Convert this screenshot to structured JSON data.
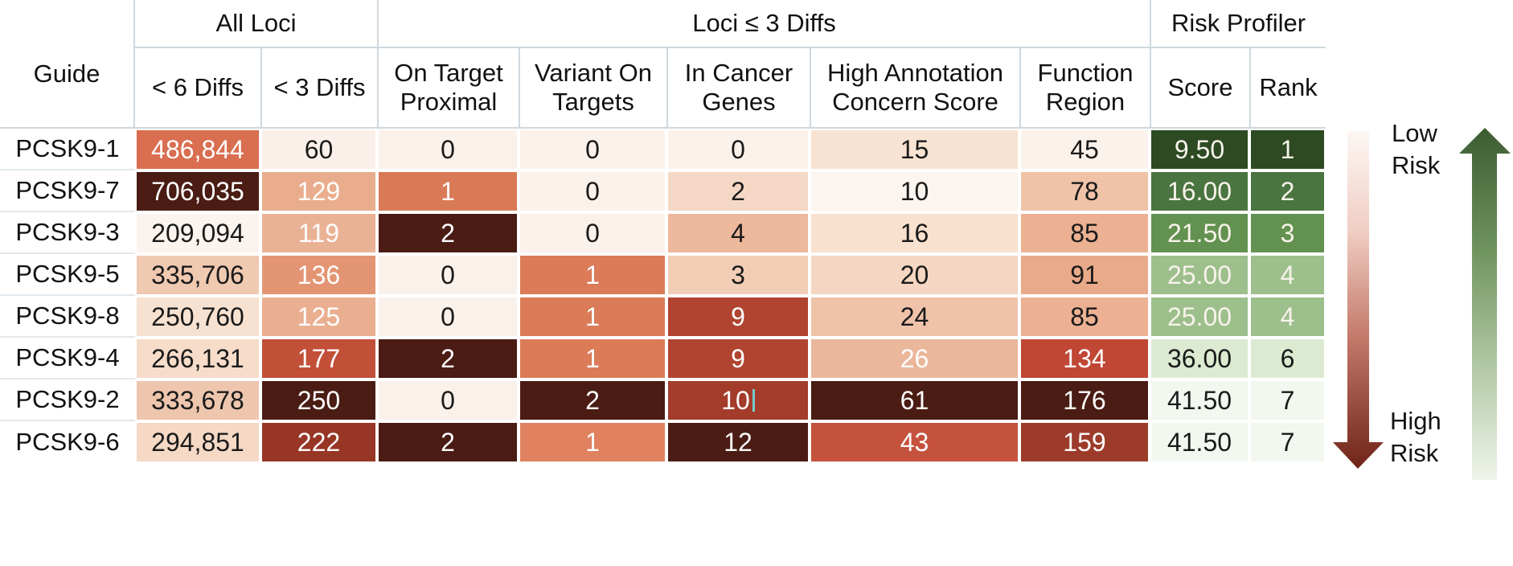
{
  "header": {
    "guide": "Guide",
    "groups": [
      {
        "label": "All Loci"
      },
      {
        "label": "Loci ≤ 3 Diffs"
      },
      {
        "label": "Risk Profiler"
      }
    ],
    "columns": [
      "< 6 Diffs",
      "< 3 Diffs",
      "On Target Proximal",
      "Variant On Targets",
      "In Cancer Genes",
      "High Annotation Concern Score",
      "Function Region",
      "Score",
      "Rank"
    ]
  },
  "rows": [
    {
      "guide": "PCSK9-1",
      "cells": [
        {
          "v": "486,844",
          "bg": "#d96e50",
          "fg": "#ffffff"
        },
        {
          "v": "60",
          "bg": "#faf0e9",
          "fg": "#1a1a1a"
        },
        {
          "v": "0",
          "bg": "#fbf1eb",
          "fg": "#1a1a1a"
        },
        {
          "v": "0",
          "bg": "#fbf1eb",
          "fg": "#1a1a1a"
        },
        {
          "v": "0",
          "bg": "#fbf1eb",
          "fg": "#1a1a1a"
        },
        {
          "v": "15",
          "bg": "#f8e3d2",
          "fg": "#1a1a1a"
        },
        {
          "v": "45",
          "bg": "#fbf2ec",
          "fg": "#1a1a1a"
        },
        {
          "v": "9.50",
          "bg": "#2d4a23",
          "fg": "#f7f3ea"
        },
        {
          "v": "1",
          "bg": "#2d4a23",
          "fg": "#f7f3ea"
        }
      ]
    },
    {
      "guide": "PCSK9-7",
      "cells": [
        {
          "v": "706,035",
          "bg": "#4a1c14",
          "fg": "#ffffff"
        },
        {
          "v": "129",
          "bg": "#e9ad8e",
          "fg": "#ffffff"
        },
        {
          "v": "1",
          "bg": "#d97a57",
          "fg": "#ffffff"
        },
        {
          "v": "0",
          "bg": "#fbf1eb",
          "fg": "#1a1a1a"
        },
        {
          "v": "2",
          "bg": "#f4d8c5",
          "fg": "#1a1a1a"
        },
        {
          "v": "10",
          "bg": "#fcf5ef",
          "fg": "#1a1a1a"
        },
        {
          "v": "78",
          "bg": "#f0c3a8",
          "fg": "#1a1a1a"
        },
        {
          "v": "16.00",
          "bg": "#4a7440",
          "fg": "#f7f3ea"
        },
        {
          "v": "2",
          "bg": "#4a7440",
          "fg": "#f7f3ea"
        }
      ]
    },
    {
      "guide": "PCSK9-3",
      "cells": [
        {
          "v": "209,094",
          "bg": "#fbf3ee",
          "fg": "#1a1a1a"
        },
        {
          "v": "119",
          "bg": "#eab295",
          "fg": "#ffffff"
        },
        {
          "v": "2",
          "bg": "#4a1c14",
          "fg": "#ffffff"
        },
        {
          "v": "0",
          "bg": "#fbf1eb",
          "fg": "#1a1a1a"
        },
        {
          "v": "4",
          "bg": "#edb89b",
          "fg": "#1a1a1a"
        },
        {
          "v": "16",
          "bg": "#f8e1cf",
          "fg": "#1a1a1a"
        },
        {
          "v": "85",
          "bg": "#ecb192",
          "fg": "#1a1a1a"
        },
        {
          "v": "21.50",
          "bg": "#639150",
          "fg": "#f7f3ea"
        },
        {
          "v": "3",
          "bg": "#639150",
          "fg": "#f7f3ea"
        }
      ]
    },
    {
      "guide": "PCSK9-5",
      "cells": [
        {
          "v": "335,706",
          "bg": "#f0c9b1",
          "fg": "#1a1a1a"
        },
        {
          "v": "136",
          "bg": "#e39573",
          "fg": "#ffffff"
        },
        {
          "v": "0",
          "bg": "#fbf1eb",
          "fg": "#1a1a1a"
        },
        {
          "v": "1",
          "bg": "#db7b58",
          "fg": "#ffffff"
        },
        {
          "v": "3",
          "bg": "#f2cdb6",
          "fg": "#1a1a1a"
        },
        {
          "v": "20",
          "bg": "#f4d6c2",
          "fg": "#1a1a1a"
        },
        {
          "v": "91",
          "bg": "#e9aa8a",
          "fg": "#1a1a1a"
        },
        {
          "v": "25.00",
          "bg": "#9dbf8c",
          "fg": "#f7f3ea"
        },
        {
          "v": "4",
          "bg": "#9dbf8c",
          "fg": "#f7f3ea"
        }
      ]
    },
    {
      "guide": "PCSK9-8",
      "cells": [
        {
          "v": "250,760",
          "bg": "#f7e1d0",
          "fg": "#1a1a1a"
        },
        {
          "v": "125",
          "bg": "#eaaf90",
          "fg": "#ffffff"
        },
        {
          "v": "0",
          "bg": "#fbf1eb",
          "fg": "#1a1a1a"
        },
        {
          "v": "1",
          "bg": "#db7b58",
          "fg": "#ffffff"
        },
        {
          "v": "9",
          "bg": "#b04430",
          "fg": "#ffffff"
        },
        {
          "v": "24",
          "bg": "#efc3aa",
          "fg": "#1a1a1a"
        },
        {
          "v": "85",
          "bg": "#ecb192",
          "fg": "#1a1a1a"
        },
        {
          "v": "25.00",
          "bg": "#9dbf8c",
          "fg": "#f7f3ea"
        },
        {
          "v": "4",
          "bg": "#9dbf8c",
          "fg": "#f7f3ea"
        }
      ]
    },
    {
      "guide": "PCSK9-4",
      "cells": [
        {
          "v": "266,131",
          "bg": "#f6dcc9",
          "fg": "#1a1a1a"
        },
        {
          "v": "177",
          "bg": "#c24f38",
          "fg": "#ffffff"
        },
        {
          "v": "2",
          "bg": "#4a1c14",
          "fg": "#ffffff"
        },
        {
          "v": "1",
          "bg": "#db7b58",
          "fg": "#ffffff"
        },
        {
          "v": "9",
          "bg": "#b04430",
          "fg": "#ffffff"
        },
        {
          "v": "26",
          "bg": "#eab79b",
          "fg": "#ffffff"
        },
        {
          "v": "134",
          "bg": "#bf4734",
          "fg": "#ffffff"
        },
        {
          "v": "36.00",
          "bg": "#dcead2",
          "fg": "#1a1a1a"
        },
        {
          "v": "6",
          "bg": "#dcead2",
          "fg": "#1a1a1a"
        }
      ]
    },
    {
      "guide": "PCSK9-2",
      "cells": [
        {
          "v": "333,678",
          "bg": "#eec6ae",
          "fg": "#1a1a1a"
        },
        {
          "v": "250",
          "bg": "#4a1c14",
          "fg": "#ffffff"
        },
        {
          "v": "0",
          "bg": "#fbf1eb",
          "fg": "#1a1a1a"
        },
        {
          "v": "2",
          "bg": "#4a1c14",
          "fg": "#ffffff"
        },
        {
          "v": "10",
          "bg": "#a33c2b",
          "fg": "#ffffff",
          "caret": true
        },
        {
          "v": "61",
          "bg": "#4a1c14",
          "fg": "#ffffff"
        },
        {
          "v": "176",
          "bg": "#4a1c14",
          "fg": "#ffffff"
        },
        {
          "v": "41.50",
          "bg": "#f2f7ef",
          "fg": "#1a1a1a"
        },
        {
          "v": "7",
          "bg": "#f2f7ef",
          "fg": "#1a1a1a"
        }
      ]
    },
    {
      "guide": "PCSK9-6",
      "cells": [
        {
          "v": "294,851",
          "bg": "#f5d9c5",
          "fg": "#1a1a1a"
        },
        {
          "v": "222",
          "bg": "#983626",
          "fg": "#ffffff"
        },
        {
          "v": "2",
          "bg": "#4a1c14",
          "fg": "#ffffff"
        },
        {
          "v": "1",
          "bg": "#e08260",
          "fg": "#ffffff"
        },
        {
          "v": "12",
          "bg": "#4a1c14",
          "fg": "#ffffff"
        },
        {
          "v": "43",
          "bg": "#c5523c",
          "fg": "#ffffff"
        },
        {
          "v": "159",
          "bg": "#9d3b2a",
          "fg": "#ffffff"
        },
        {
          "v": "41.50",
          "bg": "#f2f7ef",
          "fg": "#1a1a1a"
        },
        {
          "v": "7",
          "bg": "#f2f7ef",
          "fg": "#1a1a1a"
        }
      ]
    }
  ],
  "legend": {
    "low_label": "Low Risk",
    "high_label": "High Risk",
    "green_dark": "#3b5c31",
    "green_light": "#eff4eb",
    "red_dark": "#702419",
    "red_light": "#fdf7f4"
  },
  "chart_data": {
    "type": "heatmap",
    "title": "Guide risk profiler heatmap",
    "row_labels": [
      "PCSK9-1",
      "PCSK9-7",
      "PCSK9-3",
      "PCSK9-5",
      "PCSK9-8",
      "PCSK9-4",
      "PCSK9-2",
      "PCSK9-6"
    ],
    "column_groups": [
      {
        "label": "All Loci",
        "columns": [
          "< 6 Diffs",
          "< 3 Diffs"
        ]
      },
      {
        "label": "Loci ≤ 3 Diffs",
        "columns": [
          "On Target Proximal",
          "Variant On Targets",
          "In Cancer Genes",
          "High Annotation Concern Score",
          "Function Region"
        ]
      },
      {
        "label": "Risk Profiler",
        "columns": [
          "Score",
          "Rank"
        ]
      }
    ],
    "columns": [
      "< 6 Diffs",
      "< 3 Diffs",
      "On Target Proximal",
      "Variant On Targets",
      "In Cancer Genes",
      "High Annotation Concern Score",
      "Function Region",
      "Score",
      "Rank"
    ],
    "values": [
      [
        486844,
        60,
        0,
        0,
        0,
        15,
        45,
        9.5,
        1
      ],
      [
        706035,
        129,
        1,
        0,
        2,
        10,
        78,
        16.0,
        2
      ],
      [
        209094,
        119,
        2,
        0,
        4,
        16,
        85,
        21.5,
        3
      ],
      [
        335706,
        136,
        0,
        1,
        3,
        20,
        91,
        25.0,
        4
      ],
      [
        250760,
        125,
        0,
        1,
        9,
        24,
        85,
        25.0,
        4
      ],
      [
        266131,
        177,
        2,
        1,
        9,
        26,
        134,
        36.0,
        6
      ],
      [
        333678,
        250,
        0,
        2,
        10,
        61,
        176,
        41.5,
        7
      ],
      [
        294851,
        222,
        2,
        1,
        12,
        43,
        159,
        41.5,
        7
      ]
    ],
    "legend": {
      "top": "Low Risk",
      "bottom": "High Risk"
    },
    "colormap": "metric cells: white-to-dark-red (higher value = darker = higher risk); Score/Rank cells: dark-green-to-white (lower score = darker green = lower risk)"
  }
}
